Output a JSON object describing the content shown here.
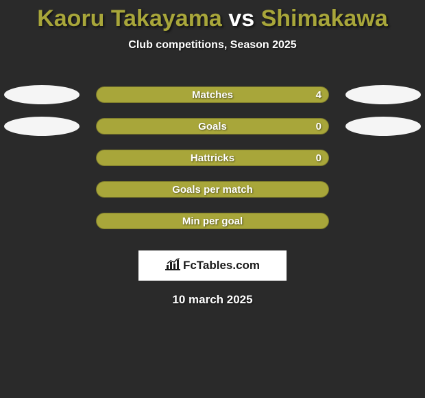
{
  "background_color": "#2a2a2a",
  "title": {
    "player1": "Kaoru Takayama",
    "vs": "vs",
    "player2": "Shimakawa",
    "player1_color": "#a8a63a",
    "vs_color": "#ffffff",
    "player2_color": "#a8a63a",
    "fontsize": 34
  },
  "subtitle": {
    "text": "Club competitions, Season 2025",
    "color": "#ffffff",
    "fontsize": 16
  },
  "rows": [
    {
      "label": "Matches",
      "value": "4",
      "bar_color": "#a8a63a",
      "left_ellipse_color": "#f5f5f5",
      "right_ellipse_color": "#f5f5f5",
      "show_left_ellipse": true,
      "show_right_ellipse": true,
      "show_value": true
    },
    {
      "label": "Goals",
      "value": "0",
      "bar_color": "#a8a63a",
      "left_ellipse_color": "#f5f5f5",
      "right_ellipse_color": "#f5f5f5",
      "show_left_ellipse": true,
      "show_right_ellipse": true,
      "show_value": true
    },
    {
      "label": "Hattricks",
      "value": "0",
      "bar_color": "#a8a63a",
      "left_ellipse_color": "",
      "right_ellipse_color": "",
      "show_left_ellipse": false,
      "show_right_ellipse": false,
      "show_value": true
    },
    {
      "label": "Goals per match",
      "value": "",
      "bar_color": "#a8a63a",
      "left_ellipse_color": "",
      "right_ellipse_color": "",
      "show_left_ellipse": false,
      "show_right_ellipse": false,
      "show_value": false
    },
    {
      "label": "Min per goal",
      "value": "",
      "bar_color": "#a8a63a",
      "left_ellipse_color": "",
      "right_ellipse_color": "",
      "show_left_ellipse": false,
      "show_right_ellipse": false,
      "show_value": false
    }
  ],
  "logo": {
    "text": "FcTables.com",
    "box_bg": "#ffffff",
    "text_color": "#1a1a1a",
    "icon_color": "#1a1a1a"
  },
  "date": {
    "text": "10 march 2025",
    "color": "#ffffff",
    "fontsize": 17
  }
}
